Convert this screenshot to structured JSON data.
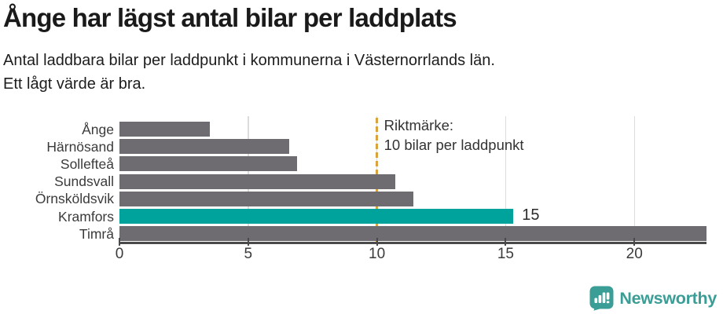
{
  "header": {
    "title": "Ånge har lägst antal bilar per laddplats",
    "subtitle_line1": "Antal laddbara bilar per laddpunkt i kommunerna i Västernorrlands län.",
    "subtitle_line2": "Ett lågt värde är bra."
  },
  "chart_data": {
    "type": "bar",
    "orientation": "horizontal",
    "categories": [
      "Ånge",
      "Härnösand",
      "Sollefteå",
      "Sundsvall",
      "Örnsköldsvik",
      "Kramfors",
      "Timrå"
    ],
    "values": [
      3.5,
      6.6,
      6.9,
      10.7,
      11.4,
      15.3,
      22.8
    ],
    "highlighted_category": "Kramfors",
    "bar_labels": {
      "Kramfors": "15"
    },
    "xlim": [
      0,
      22.8
    ],
    "x_ticks": [
      0,
      5,
      10,
      15,
      20
    ],
    "gridlines": [
      5,
      10,
      15,
      20
    ],
    "grid": true,
    "guide": {
      "value": 10,
      "label_line1": "Riktmärke:",
      "label_line2": "10 bilar per laddpunkt"
    },
    "colors": {
      "bar": "#6e6c71",
      "highlight": "#00a39b",
      "guide": "#d9a43f",
      "grid": "#dcdcdc",
      "axis": "#4a4a4a"
    }
  },
  "footer": {
    "brand": "Newsworthy",
    "brand_color": "#3a9d96",
    "logo_icon": "bar-chart-speech-bubble-icon"
  }
}
